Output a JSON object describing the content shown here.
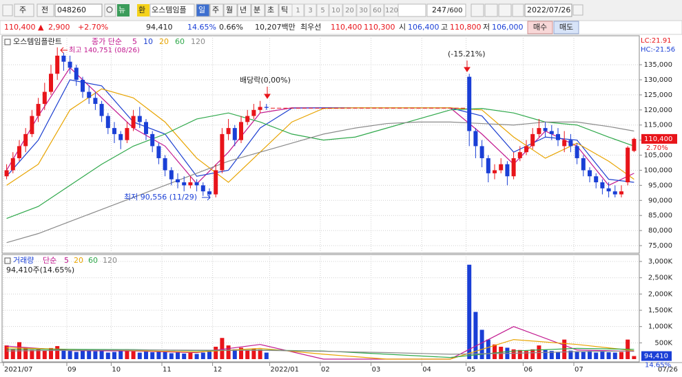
{
  "toolbar": {
    "period_unit": "주",
    "prev": "전",
    "code": "048260",
    "news": "뉴",
    "exchange": "환",
    "name": "오스템임플",
    "periods": [
      "일",
      "주",
      "월",
      "년",
      "분",
      "초",
      "틱"
    ],
    "intervals": [
      "1",
      "3",
      "5",
      "10",
      "20",
      "30",
      "60",
      "120"
    ],
    "count": "247",
    "max_count": "/600",
    "date": "2022/07/26"
  },
  "info": {
    "price": "110,400 ▲",
    "change": "2,900",
    "change_pct": "+2.70%",
    "volume": "94,410",
    "turnover": "14.65%",
    "ratio": "0.66%",
    "amount": "10,207백만",
    "best_label": "최우선",
    "ask": "110,400",
    "bid": "110,300",
    "open_label": "시",
    "open": "106,400",
    "high_label": "고",
    "high": "110,800",
    "low_label": "저",
    "low": "106,000",
    "buy": "매수",
    "sell": "매도"
  },
  "chart_data": [
    {
      "type": "candlestick",
      "title": "오스템임플란트",
      "legend_prefix": "종가 단순",
      "categories": [
        "2021/07",
        null,
        null,
        null,
        null,
        null,
        null,
        null,
        null,
        null,
        "09",
        null,
        null,
        null,
        null,
        null,
        null,
        "10",
        null,
        null,
        null,
        null,
        null,
        null,
        null,
        "11",
        null,
        null,
        null,
        null,
        null,
        null,
        null,
        "12",
        null,
        null,
        null,
        null,
        null,
        null,
        null,
        null,
        "2022/01",
        null,
        null,
        null,
        null,
        null,
        null,
        null,
        "02",
        null,
        null,
        null,
        null,
        null,
        null,
        null,
        "03",
        null,
        null,
        null,
        null,
        null,
        null,
        null,
        "04",
        null,
        null,
        null,
        null,
        null,
        null,
        "05",
        null,
        null,
        null,
        null,
        null,
        null,
        null,
        null,
        "06",
        null,
        null,
        null,
        null,
        null,
        null,
        null,
        "07",
        null,
        null,
        null,
        null,
        null,
        null,
        null,
        null,
        null
      ],
      "open": [
        98000,
        100000,
        104000,
        108000,
        112000,
        118000,
        122000,
        126000,
        132000,
        138000,
        136000,
        134000,
        130000,
        126000,
        124000,
        122000,
        118000,
        114000,
        112000,
        110000,
        114000,
        118000,
        116000,
        112000,
        108000,
        104000,
        100000,
        97000,
        96000,
        95000,
        96000,
        95000,
        93000,
        92000,
        100000,
        112000,
        114000,
        110000,
        116000,
        118000,
        120000,
        121000,
        120700,
        120700,
        120700,
        120700,
        120700,
        120700,
        120700,
        120700,
        120700,
        120700,
        120700,
        120700,
        120700,
        120700,
        120700,
        120700,
        120700,
        120700,
        120700,
        120700,
        120700,
        120700,
        120700,
        120700,
        120700,
        120700,
        120700,
        120700,
        120700,
        120700,
        120700,
        131000,
        113000,
        108000,
        104000,
        99000,
        100000,
        102000,
        98000,
        104000,
        106000,
        108000,
        112000,
        114000,
        113000,
        112000,
        108000,
        110000,
        108000,
        104000,
        100000,
        98000,
        96000,
        94000,
        93000,
        92000,
        96000,
        106400
      ],
      "high": [
        102000,
        106000,
        110000,
        114000,
        120000,
        124000,
        129000,
        135000,
        140751,
        139000,
        138000,
        135000,
        131000,
        128000,
        126000,
        123000,
        119000,
        116000,
        113000,
        116000,
        120000,
        121000,
        117000,
        113000,
        109000,
        105000,
        101000,
        99000,
        98000,
        98000,
        97000,
        96000,
        94000,
        102000,
        114000,
        117000,
        115000,
        118000,
        120000,
        122000,
        123000,
        122000,
        120700,
        120700,
        120700,
        120700,
        120700,
        120700,
        120700,
        120700,
        120700,
        120700,
        120700,
        120700,
        120700,
        120700,
        120700,
        120700,
        120700,
        120700,
        120700,
        120700,
        120700,
        120700,
        120700,
        120700,
        120700,
        120700,
        120700,
        120700,
        120700,
        120700,
        120700,
        132000,
        114000,
        110000,
        105000,
        102000,
        104000,
        103000,
        106000,
        108000,
        110000,
        114000,
        117000,
        116000,
        115000,
        114000,
        113000,
        112000,
        109000,
        105000,
        101000,
        99000,
        97000,
        96000,
        95000,
        95000,
        108000,
        110800
      ],
      "low": [
        97000,
        99000,
        103000,
        106000,
        111000,
        116000,
        120000,
        125000,
        130000,
        133000,
        132000,
        128000,
        124000,
        122000,
        120000,
        116000,
        112000,
        109000,
        107000,
        109000,
        113000,
        114000,
        110000,
        106000,
        102000,
        98000,
        95000,
        94000,
        93000,
        94000,
        93000,
        91500,
        90556,
        91000,
        99000,
        110000,
        108000,
        109000,
        115000,
        117000,
        119000,
        120000,
        120700,
        120700,
        120700,
        120700,
        120700,
        120700,
        120700,
        120700,
        120700,
        120700,
        120700,
        120700,
        120700,
        120700,
        120700,
        120700,
        120700,
        120700,
        120700,
        120700,
        120700,
        120700,
        120700,
        120700,
        120700,
        120700,
        120700,
        120700,
        120700,
        120700,
        120700,
        108000,
        104000,
        101000,
        96000,
        97000,
        99000,
        95000,
        97000,
        103000,
        105000,
        107000,
        111000,
        111000,
        110000,
        108000,
        106000,
        106000,
        102000,
        98000,
        96000,
        94000,
        92000,
        91000,
        91000,
        91000,
        95000,
        106000
      ],
      "close": [
        100000,
        104000,
        108000,
        112000,
        118000,
        122000,
        126000,
        132000,
        138000,
        136000,
        134000,
        130000,
        126000,
        124000,
        122000,
        118000,
        114000,
        112000,
        110000,
        114000,
        118000,
        116000,
        112000,
        108000,
        104000,
        100000,
        97000,
        96000,
        95000,
        96000,
        95000,
        93000,
        92000,
        100000,
        112000,
        114000,
        110000,
        116000,
        118000,
        120000,
        121000,
        120700,
        120700,
        120700,
        120700,
        120700,
        120700,
        120700,
        120700,
        120700,
        120700,
        120700,
        120700,
        120700,
        120700,
        120700,
        120700,
        120700,
        120700,
        120700,
        120700,
        120700,
        120700,
        120700,
        120700,
        120700,
        120700,
        120700,
        120700,
        120700,
        120700,
        120700,
        120700,
        113000,
        108000,
        104000,
        99000,
        100000,
        102000,
        98000,
        104000,
        106000,
        108000,
        112000,
        114000,
        113000,
        112000,
        110000,
        110000,
        108000,
        104000,
        100000,
        98000,
        96000,
        94000,
        93000,
        92000,
        93000,
        107500,
        110400
      ],
      "up_color": "#e8141a",
      "down_color": "#1a3fd6",
      "series": [
        {
          "name": "5",
          "color": "#c2188f",
          "x": [
            0,
            5,
            10,
            15,
            20,
            25,
            30,
            35,
            40,
            45,
            50,
            55,
            60,
            65,
            70,
            75,
            80,
            85,
            90,
            95,
            99
          ],
          "values": [
            100000,
            118000,
            134000,
            124000,
            114000,
            108000,
            95500,
            106000,
            119000,
            120700,
            120700,
            120700,
            120700,
            120700,
            120700,
            112000,
            102000,
            113000,
            108000,
            95000,
            99000
          ]
        },
        {
          "name": "10",
          "color": "#1c3fd0",
          "x": [
            0,
            5,
            10,
            15,
            20,
            25,
            30,
            35,
            40,
            45,
            50,
            55,
            60,
            65,
            70,
            75,
            80,
            85,
            90,
            95,
            99
          ],
          "values": [
            98000,
            110000,
            130000,
            128000,
            116000,
            112000,
            98000,
            100000,
            114000,
            120600,
            120700,
            120700,
            120700,
            120700,
            120700,
            118000,
            106000,
            111000,
            110000,
            97000,
            96000
          ]
        },
        {
          "name": "20",
          "color": "#e8a400",
          "x": [
            0,
            5,
            10,
            15,
            20,
            25,
            30,
            35,
            40,
            45,
            50,
            55,
            60,
            65,
            70,
            75,
            80,
            85,
            90,
            95,
            99
          ],
          "values": [
            95000,
            102000,
            120000,
            127000,
            124000,
            116000,
            104000,
            96000,
            106000,
            116000,
            120500,
            120700,
            120700,
            120700,
            120700,
            120000,
            111000,
            104000,
            109000,
            103000,
            97000
          ]
        },
        {
          "name": "60",
          "color": "#2ea84a",
          "x": [
            0,
            5,
            10,
            15,
            20,
            25,
            30,
            35,
            40,
            45,
            50,
            55,
            60,
            65,
            70,
            75,
            80,
            85,
            90,
            95,
            99
          ],
          "values": [
            84000,
            88000,
            95000,
            102000,
            108000,
            112000,
            117000,
            119000,
            116000,
            112000,
            110000,
            111000,
            114000,
            117000,
            120000,
            120500,
            119000,
            116000,
            115000,
            111000,
            108000
          ]
        },
        {
          "name": "120",
          "color": "#8a8a8a",
          "x": [
            0,
            5,
            10,
            15,
            20,
            25,
            30,
            35,
            40,
            45,
            50,
            55,
            60,
            65,
            70,
            75,
            80,
            85,
            90,
            95,
            99
          ],
          "values": [
            76000,
            79000,
            83000,
            87000,
            91000,
            95000,
            99000,
            103000,
            106000,
            109000,
            112000,
            114000,
            115500,
            116000,
            116000,
            115500,
            115000,
            116000,
            116000,
            114500,
            113000
          ]
        }
      ],
      "ylim": [
        72500,
        144600
      ],
      "yticks": [
        {
          "value": 75000,
          "label": "75,000"
        },
        {
          "value": 80000,
          "label": "80,000"
        },
        {
          "value": 85000,
          "label": "85,000"
        },
        {
          "value": 90000,
          "label": "90,000"
        },
        {
          "value": 95000,
          "label": "95,000"
        },
        {
          "value": 100000,
          "label": "100,000"
        },
        {
          "value": 105000,
          "label": "105,000"
        },
        {
          "value": 110000,
          "label": "110,000"
        },
        {
          "value": 115000,
          "label": "115,000"
        },
        {
          "value": 120000,
          "label": "120,000"
        },
        {
          "value": 125000,
          "label": "125,000"
        },
        {
          "value": 130000,
          "label": "130,000"
        },
        {
          "value": 135000,
          "label": "135,000"
        }
      ],
      "grid": true,
      "annotations": {
        "max": "최고 140,751 (08/26)",
        "min": "최저 90,556 (11/29)",
        "dividend": "배당락(0,00%)",
        "drop": "(-15.21%)"
      },
      "lc": "LC:21.91",
      "hc": "HC:-21.56",
      "price_tag": "110,400",
      "pct_tag": "2.70%",
      "last_date": "07/26"
    },
    {
      "type": "volume_bar",
      "title": "거래량",
      "legend_prefix": "단순",
      "subtitle": "94,410주(14.65%)",
      "values": [
        420000,
        300000,
        520000,
        350000,
        280000,
        300000,
        260000,
        340000,
        400000,
        300000,
        250000,
        220000,
        300000,
        260000,
        240000,
        280000,
        200000,
        220000,
        260000,
        300000,
        240000,
        200000,
        230000,
        210000,
        250000,
        220000,
        180000,
        200000,
        170000,
        190000,
        160000,
        200000,
        230000,
        380000,
        650000,
        420000,
        300000,
        350000,
        280000,
        320000,
        300000,
        200000,
        0,
        0,
        0,
        0,
        0,
        0,
        0,
        0,
        0,
        0,
        0,
        0,
        0,
        0,
        0,
        0,
        0,
        0,
        0,
        0,
        0,
        0,
        0,
        0,
        0,
        0,
        0,
        0,
        0,
        0,
        0,
        2900000,
        1450000,
        900000,
        600000,
        450000,
        380000,
        350000,
        300000,
        280000,
        250000,
        300000,
        420000,
        280000,
        250000,
        220000,
        600000,
        260000,
        240000,
        220000,
        250000,
        200000,
        230000,
        210000,
        200000,
        220000,
        600000,
        94410
      ],
      "series": [
        {
          "name": "5",
          "color": "#c2188f",
          "x": [
            0,
            10,
            20,
            30,
            40,
            50,
            60,
            70,
            80,
            90,
            99
          ],
          "values": [
            400000,
            260000,
            250000,
            200000,
            450000,
            0,
            0,
            0,
            1000000,
            280000,
            240000
          ]
        },
        {
          "name": "20",
          "color": "#e8a400",
          "x": [
            0,
            10,
            20,
            30,
            40,
            50,
            60,
            70,
            80,
            90,
            99
          ],
          "values": [
            350000,
            300000,
            260000,
            220000,
            330000,
            150000,
            0,
            0,
            600000,
            450000,
            260000
          ]
        },
        {
          "name": "60",
          "color": "#2ea84a",
          "x": [
            0,
            10,
            20,
            30,
            40,
            50,
            60,
            70,
            80,
            90,
            99
          ],
          "values": [
            300000,
            300000,
            290000,
            260000,
            280000,
            250000,
            150000,
            50000,
            250000,
            330000,
            300000
          ]
        },
        {
          "name": "120",
          "color": "#8a8a8a",
          "x": [
            0,
            10,
            20,
            30,
            40,
            50,
            60,
            70,
            80,
            90,
            99
          ],
          "values": [
            250000,
            270000,
            280000,
            275000,
            270000,
            240000,
            200000,
            150000,
            180000,
            230000,
            250000
          ]
        }
      ],
      "ylim": [
        0,
        3170000
      ],
      "yticks": [
        {
          "value": 500000,
          "label": "500K"
        },
        {
          "value": 1000000,
          "label": "1,000K"
        },
        {
          "value": 1500000,
          "label": "1,500K"
        },
        {
          "value": 2000000,
          "label": "2,000K"
        },
        {
          "value": 2500000,
          "label": "2,500K"
        },
        {
          "value": 3000000,
          "label": "3,000K"
        }
      ],
      "value_tag": "94,410",
      "pct_tag": "14.65%"
    }
  ]
}
